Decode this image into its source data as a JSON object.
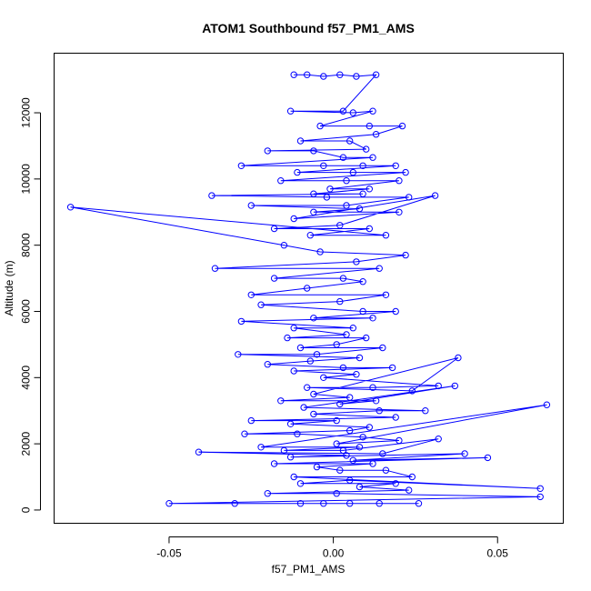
{
  "chart_data": {
    "type": "line",
    "title": "ATOM1 Southbound f57_PM1_AMS",
    "xlabel": "f57_PM1_AMS",
    "ylabel": "Altitude (m)",
    "xlim": [
      -0.085,
      0.07
    ],
    "ylim": [
      -400,
      13800
    ],
    "x_ticks": [
      -0.05,
      0.0,
      0.05
    ],
    "x_tick_labels": [
      "-0.05",
      "0.00",
      "0.05"
    ],
    "y_ticks": [
      0,
      2000,
      4000,
      6000,
      8000,
      10000,
      12000
    ],
    "y_tick_labels": [
      "0",
      "2000",
      "4000",
      "6000",
      "8000",
      "10000",
      "12000"
    ],
    "series": [
      {
        "name": "f57_PM1_AMS",
        "color": "#0000ff",
        "marker": "open-circle",
        "x": [
          -0.012,
          -0.008,
          -0.003,
          0.002,
          0.007,
          0.013,
          0.003,
          -0.013,
          0.006,
          0.012,
          -0.004,
          0.011,
          0.021,
          0.013,
          -0.01,
          0.005,
          0.01,
          -0.02,
          -0.006,
          0.003,
          0.012,
          -0.028,
          -0.003,
          0.009,
          0.019,
          -0.011,
          0.006,
          0.022,
          -0.016,
          0.004,
          0.02,
          -0.001,
          0.011,
          -0.006,
          0.009,
          -0.037,
          -0.002,
          0.023,
          0.004,
          -0.025,
          0.008,
          -0.006,
          0.02,
          -0.012,
          0.031,
          0.002,
          -0.018,
          0.011,
          -0.007,
          0.016,
          -0.08,
          -0.015,
          -0.004,
          0.022,
          0.007,
          -0.036,
          0.014,
          -0.018,
          0.003,
          0.009,
          -0.008,
          -0.025,
          0.016,
          0.002,
          -0.022,
          0.009,
          0.019,
          -0.006,
          0.012,
          -0.028,
          0.006,
          -0.012,
          0.004,
          -0.014,
          0.01,
          0.001,
          -0.01,
          0.015,
          -0.005,
          -0.029,
          0.008,
          -0.007,
          -0.02,
          0.003,
          0.018,
          -0.012,
          0.007,
          -0.003,
          0.032,
          0.012,
          -0.008,
          0.024,
          0.038,
          -0.006,
          0.005,
          -0.016,
          0.013,
          0.002,
          0.037,
          -0.009,
          0.028,
          0.014,
          -0.006,
          0.019,
          -0.025,
          0.001,
          -0.013,
          0.011,
          0.005,
          -0.027,
          -0.011,
          0.009,
          0.02,
          0.001,
          0.065,
          -0.022,
          0.008,
          -0.015,
          0.003,
          0.032,
          0.015,
          -0.041,
          0.004,
          -0.013,
          0.04,
          0.006,
          0.047,
          -0.018,
          0.012,
          -0.005,
          0.002,
          0.016,
          0.024,
          -0.012,
          0.063,
          0.005,
          -0.01,
          0.019,
          0.008,
          0.023,
          -0.02,
          0.001,
          0.063,
          -0.05,
          -0.03,
          -0.01,
          0.005,
          0.014,
          0.026,
          -0.003
        ],
        "y": [
          13150,
          13150,
          13100,
          13150,
          13100,
          13150,
          12050,
          12050,
          12000,
          12050,
          11600,
          11600,
          11600,
          11350,
          11150,
          11150,
          10900,
          10850,
          10850,
          10650,
          10650,
          10400,
          10400,
          10400,
          10400,
          10200,
          10200,
          10200,
          9950,
          9950,
          9950,
          9700,
          9700,
          9550,
          9550,
          9500,
          9450,
          9450,
          9200,
          9200,
          9100,
          9000,
          9000,
          8800,
          9500,
          8600,
          8500,
          8500,
          8300,
          8300,
          9150,
          8000,
          7800,
          7700,
          7500,
          7300,
          7300,
          7000,
          7000,
          6900,
          6700,
          6500,
          6500,
          6300,
          6200,
          6000,
          6000,
          5800,
          5800,
          5700,
          5500,
          5500,
          5300,
          5200,
          5200,
          5000,
          4900,
          4900,
          4700,
          4700,
          4600,
          4500,
          4400,
          4300,
          4300,
          4200,
          4100,
          4000,
          3750,
          3700,
          3700,
          3600,
          4600,
          3500,
          3400,
          3300,
          3300,
          3200,
          3750,
          3100,
          3000,
          3000,
          2900,
          2800,
          2700,
          2700,
          2600,
          2500,
          2400,
          2300,
          2300,
          2200,
          2100,
          2000,
          3180,
          1900,
          1900,
          1800,
          1800,
          2150,
          1700,
          1750,
          1650,
          1600,
          1700,
          1500,
          1580,
          1400,
          1400,
          1300,
          1200,
          1200,
          1000,
          1000,
          650,
          900,
          800,
          800,
          700,
          600,
          500,
          500,
          400,
          200,
          200,
          200,
          200,
          200,
          200,
          200
        ]
      }
    ]
  }
}
